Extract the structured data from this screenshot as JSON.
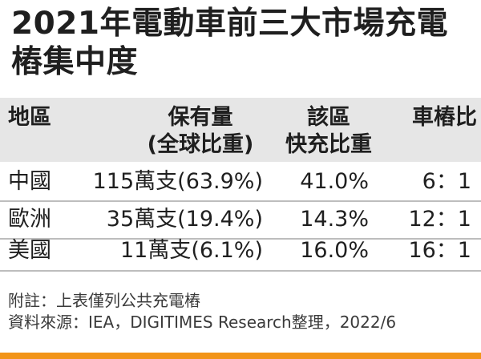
{
  "colors": {
    "header_bg": "#e6e6e6",
    "bottom_bar": "#f29418",
    "divider": "#bdbdbd"
  },
  "chart_data": {
    "type": "table",
    "title_lines": [
      "2021年電動車前三大市場充電",
      "樁集中度"
    ],
    "columns": [
      {
        "lines": [
          "地區"
        ]
      },
      {
        "lines": [
          "保有量",
          "(全球比重)"
        ]
      },
      {
        "lines": [
          "該區",
          "快充比重"
        ]
      },
      {
        "lines": [
          "車樁比"
        ]
      }
    ],
    "rows": [
      {
        "region": "中國",
        "holding": "115萬支(63.9%)",
        "fast_share": "41.0%",
        "ratio": "6：1"
      },
      {
        "region": "歐洲",
        "holding": "35萬支(19.4%)",
        "fast_share": "14.3%",
        "ratio": "12：1"
      },
      {
        "region": "美國",
        "holding": "11萬支(6.1%)",
        "fast_share": "16.0%",
        "ratio": "16：1"
      }
    ],
    "notes": [
      "附註：上表僅列公共充電樁",
      "資料來源：IEA，DIGITIMES Research整理，2022/6"
    ]
  }
}
